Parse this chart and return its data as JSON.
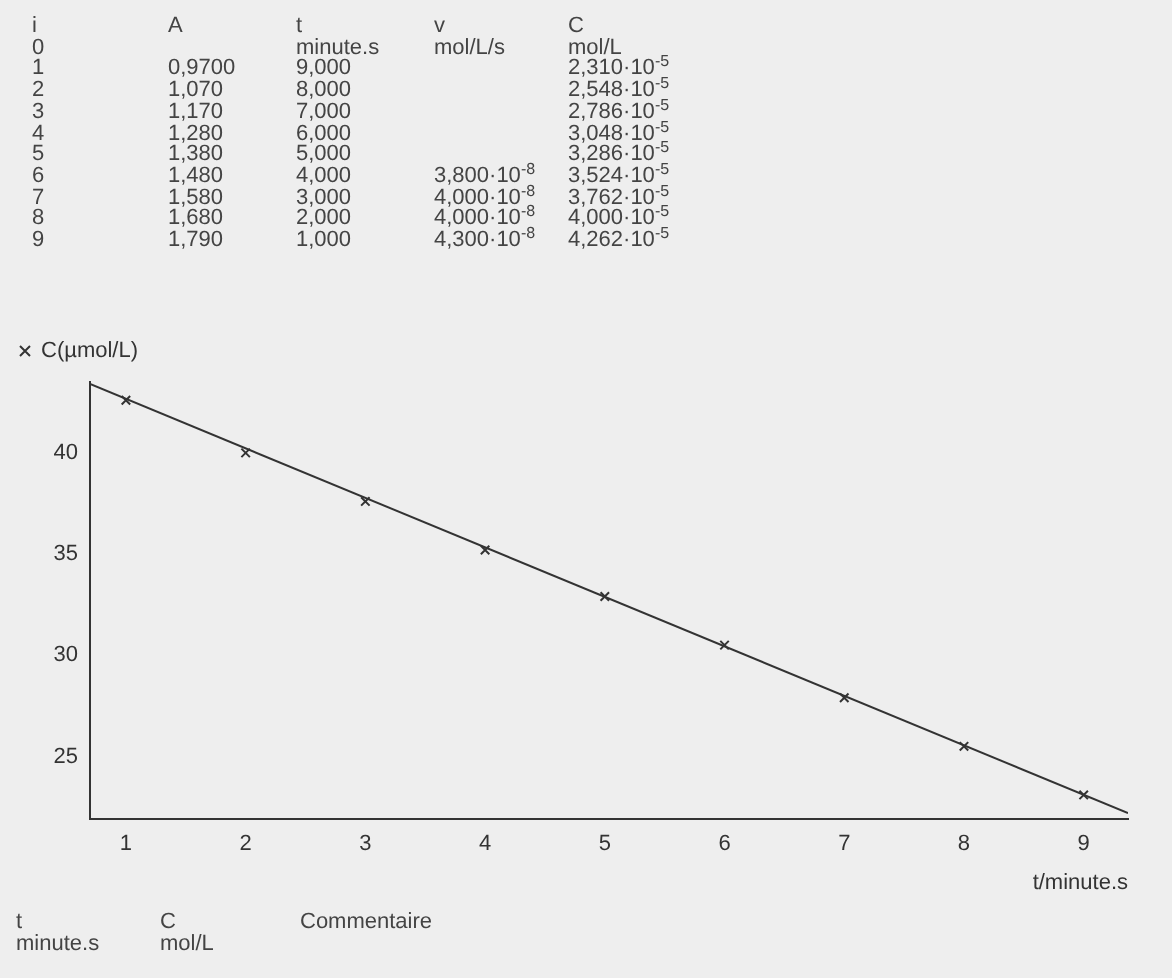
{
  "chart_data": {
    "type": "scatter",
    "xlabel": "t/minute.s",
    "xlim": [
      0.7,
      9.37
    ],
    "xticks": [
      1,
      2,
      3,
      4,
      5,
      6,
      7,
      8,
      9
    ],
    "ylim": [
      21.9,
      43.5
    ],
    "yticks": [
      25,
      30,
      35,
      40
    ],
    "legend": "top left",
    "series": [
      {
        "name": "C(µmol/L)",
        "marker": "cross",
        "color": "#333333",
        "x": [
          1,
          2,
          3,
          4,
          5,
          6,
          7,
          8,
          9
        ],
        "values": [
          42.6,
          40.0,
          37.6,
          35.2,
          32.9,
          30.5,
          27.9,
          25.5,
          23.1
        ]
      },
      {
        "type": "line",
        "marker": "none",
        "color": "#333333",
        "x": [
          0.7,
          9.37
        ],
        "values": [
          43.4,
          22.2
        ]
      }
    ],
    "annotations": [
      "i\n0\n1\n2\n3\n4\n5\n6\n7\n8\n9",
      "A\n\n0,9700\n1,070\n1,170\n1,280\n1,380\n1,480\n1,580\n1,680\n1,790",
      "t\nminute.s\n9,000\n8,000\n7,000\n6,000\n5,000\n4,000\n3,000\n2,000\n1,000",
      "v\nmol/L/s\n\n\n\n\n\n3,800·10$^{-8}$\n4,000·10$^{-8}$\n4,000·10$^{-8}$\n4,300·10$^{-8}$",
      "C\nmol/L\n2,310·10$^{-5}$\n2,548·10$^{-5}$\n2,786·10$^{-5}$\n3,048·10$^{-5}$\n3,286·10$^{-5}$\n3,524·10$^{-5}$\n3,762·10$^{-5}$\n4,000·10$^{-5}$\n4,262·10$^{-5}$",
      "t\nminute.s",
      "C\nmol/L",
      "Commentaire"
    ]
  }
}
